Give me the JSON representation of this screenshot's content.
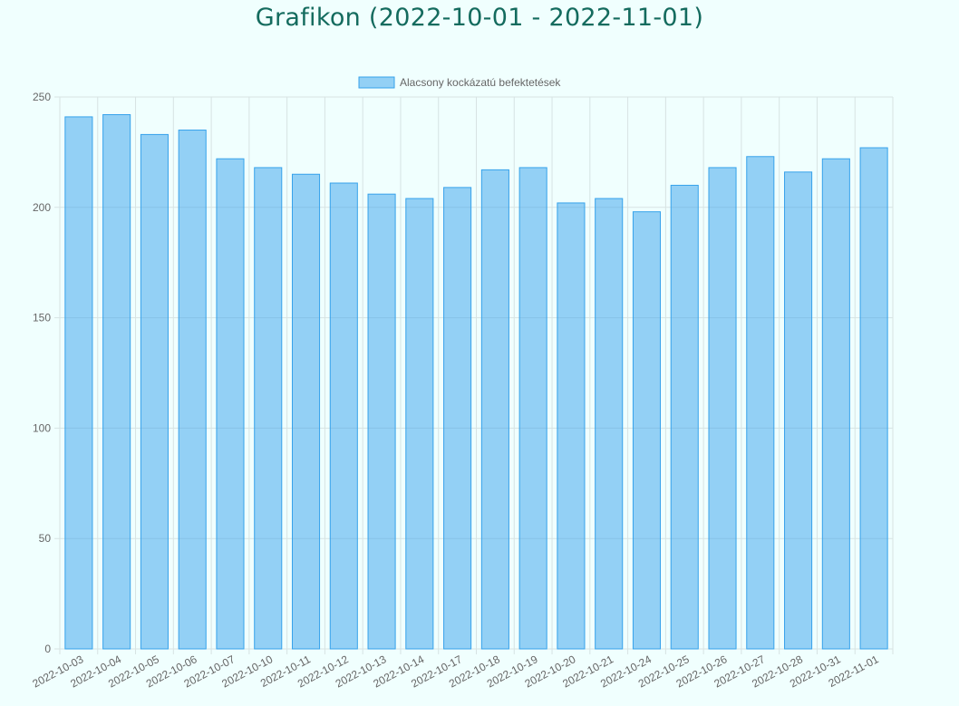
{
  "page": {
    "title": "Grafikon (2022-10-01 - 2022-11-01)"
  },
  "colors": {
    "background": "#f0fffe",
    "title": "#146b5e",
    "bar_fill": "rgba(54,162,235,0.5)",
    "bar_border": "#36a2eb",
    "grid": "#d7e3e3",
    "tick_text": "#666666"
  },
  "chart_data": {
    "type": "bar",
    "legend_position": "top-center",
    "grid": true,
    "ylim": [
      0,
      250
    ],
    "yticks": [
      0,
      50,
      100,
      150,
      200,
      250
    ],
    "categories": [
      "2022-10-03",
      "2022-10-04",
      "2022-10-05",
      "2022-10-06",
      "2022-10-07",
      "2022-10-10",
      "2022-10-11",
      "2022-10-12",
      "2022-10-13",
      "2022-10-14",
      "2022-10-17",
      "2022-10-18",
      "2022-10-19",
      "2022-10-20",
      "2022-10-21",
      "2022-10-24",
      "2022-10-25",
      "2022-10-26",
      "2022-10-27",
      "2022-10-28",
      "2022-10-31",
      "2022-11-01"
    ],
    "series": [
      {
        "name": "Alacsony kockázatú befektetések",
        "values": [
          241,
          242,
          233,
          235,
          222,
          218,
          215,
          211,
          206,
          204,
          209,
          217,
          218,
          202,
          204,
          198,
          210,
          218,
          223,
          216,
          222,
          227
        ]
      }
    ]
  }
}
